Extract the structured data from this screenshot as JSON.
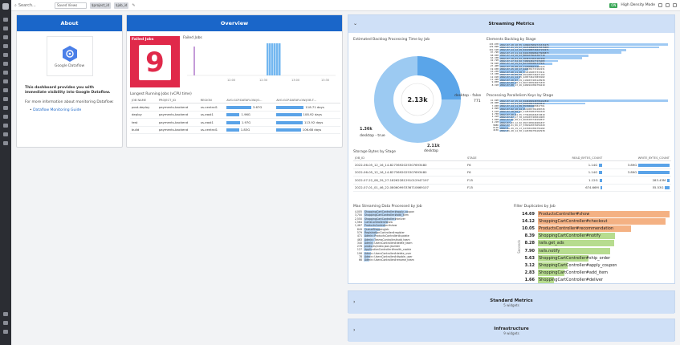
{
  "topbar": {
    "search_label": "Search...",
    "saved_views": "Saved Views",
    "template_var_1": "$project_id",
    "template_var_2": "$job_id",
    "high_density_label": "High Density Mode",
    "toggle_label": "ON"
  },
  "about": {
    "title": "About",
    "logo_text": "Google Dataflow",
    "intro": "This dashboard provides you with immediate visibility into Google Dataflow.",
    "more_info": "For more information about monitoring Dataflow:",
    "link": "Dataflow Monitoring Guide"
  },
  "overview": {
    "title": "Overview",
    "failed_jobs_label": "Failed Jobs",
    "failed_jobs_value": "9",
    "failed_jobs_chart_title": "Failed Jobs",
    "x_ticks": [
      "12:00",
      "12:30",
      "13:00",
      "13:30"
    ],
    "longest_title": "Longest Running Jobs (vCPU time)",
    "columns": [
      "JOB NAME",
      "PROJECT_ID",
      "REGION",
      "AVG:GCP.DATAFLOW.JO...",
      "AVG:GCP.DATAFLOW.JOB.T..."
    ],
    "rows": [
      {
        "job": "post-deploy",
        "project": "payments-backend",
        "region": "us-central1",
        "v1": "3.67G",
        "v2": "118.71 days",
        "b1": 0.85,
        "b2": 0.95
      },
      {
        "job": "deploy",
        "project": "payments-backend",
        "region": "us-east1",
        "v1": "1.96G",
        "v2": "108.92 days",
        "b1": 0.45,
        "b2": 0.87
      },
      {
        "job": "test",
        "project": "payments-backend",
        "region": "us-east1",
        "v1": "1.97G",
        "v2": "113.92 days",
        "b1": 0.46,
        "b2": 0.91
      },
      {
        "job": "build",
        "project": "payments-backend",
        "region": "us-central1",
        "v1": "1.83G",
        "v2": "106.68 days",
        "b1": 0.43,
        "b2": 0.85
      }
    ]
  },
  "streaming": {
    "title": "Streaming Metrics",
    "backlog_time_title": "Estimated Backlog Processing Time by Job",
    "donut_center": "2.13k",
    "donut_labels": {
      "a": "desktop - false",
      "a_val": "771",
      "b": "1.36k",
      "b_sub": "desktop - true",
      "c": "2.11k",
      "c_sub": "desktop"
    },
    "elements_backlog_title": "Elements Backlog by Stage",
    "elements_backlog": [
      {
        "v": "135.07M",
        "k": "2022-07-18_10_55_1284676092715315275",
        "f": 0.98
      },
      {
        "v": "129.89M",
        "k": "2022-07-21_15_27_1647498493578376003",
        "f": 0.93
      },
      {
        "v": "101.51M",
        "k": "2022-07-14_12_29_0412988718447159271",
        "f": 0.74
      },
      {
        "v": "97.79M",
        "k": "2022-07-13_11_44_0416368908473908873",
        "f": 0.71
      },
      {
        "v": "68.95M",
        "k": "2022-07-14_16_23_8891076624387718",
        "f": 0.52
      },
      {
        "v": "63.33M",
        "k": "2022-07-18_03_52_3838713021187458",
        "f": 0.48
      },
      {
        "v": "42.72M",
        "k": "2022-07-17_04_02_7482948177271683",
        "f": 0.34
      },
      {
        "v": "39.04M",
        "k": "2022-07-12_15_01_8271009481337921",
        "f": 0.31
      },
      {
        "v": "27.46M",
        "k": "2022-07-19_08_22_1123098472283123",
        "f": 0.23
      },
      {
        "v": "19.03M",
        "k": "2022-07-15_10_17_4429381772102231",
        "f": 0.17
      },
      {
        "v": "16.23M",
        "k": "2022-07-20_11_48_7729102837372211",
        "f": 0.15
      },
      {
        "v": "13.33M",
        "k": "2022-07-16_09_33_9912883746271102",
        "f": 0.13
      },
      {
        "v": "12.01M",
        "k": "2022-07-11_14_05_2283746172839102",
        "f": 0.12
      },
      {
        "v": "11.42M",
        "k": "2022-07-10_07_59_1192837465120938",
        "f": 0.11
      },
      {
        "v": "9.85M",
        "k": "2022-07-09_18_41_6617283940271839",
        "f": 0.1
      },
      {
        "v": "8.31M",
        "k": "2022-07-08_13_26_4482910384756210",
        "f": 0.09
      }
    ],
    "parallelism_title": "Processing Parallelism Keys by Stage",
    "parallelism": [
      {
        "v": "41.02M",
        "k": "2022-07-12_15_22_0440484948796162832",
        "f": 0.98
      },
      {
        "v": "20.96M",
        "k": "2022-07-13_21_43_2910284716293812",
        "f": 0.5
      },
      {
        "v": "7.05M",
        "k": "2022-07-14_11_09_5572819203847761",
        "f": 0.2
      },
      {
        "v": "4.89M",
        "k": "2022-07-02_10_44_4519887361298745",
        "f": 0.15
      },
      {
        "v": "3.61M",
        "k": "2022-07-18_09_16_1128392847561029",
        "f": 0.12
      },
      {
        "v": "2.75M",
        "k": "2022-07-20_04_55_7739201846372810",
        "f": 0.1
      },
      {
        "v": "2.41M",
        "k": "2022-07-07_17_38_2291837465019283",
        "f": 0.09
      },
      {
        "v": "1.82M",
        "k": "2022-07-05_08_21_6618293740192837",
        "f": 0.08
      },
      {
        "v": "1.21M",
        "k": "2022-07-03_12_02_9917283649201837",
        "f": 0.07
      },
      {
        "v": "988K",
        "k": "2022-07-01_06_47_3381920374651029",
        "f": 0.06
      },
      {
        "v": "611K",
        "k": "2022-06-29_19_13_4472819304756182",
        "f": 0.05
      },
      {
        "v": "415K",
        "k": "2022-06-28_14_58_1129384756102938",
        "f": 0.05
      }
    ],
    "storage_title": "Storage Bytes by Stage",
    "storage_columns": [
      "JOB_ID",
      "STAGE",
      "READ_BYTES_COUNT",
      "WRITE_BYTES_COUNT"
    ],
    "storage_rows": [
      {
        "job": "2022-06-05_12_16_14-8273692025307693480",
        "stage": "F6",
        "read": "1.14G",
        "write": "3.89G",
        "r": 0.1,
        "w": 0.97
      },
      {
        "job": "2022-06-05_12_16_14-8273692025307693480",
        "stage": "F6",
        "read": "1.14G",
        "write": "3.89G",
        "r": 0.1,
        "w": 0.97
      },
      {
        "job": "2022-07-22_08_29_27-18262281291012947197",
        "stage": "F15",
        "read": "1.12G",
        "write": "283.43M",
        "r": 0.09,
        "w": 0.07
      },
      {
        "job": "2022-07-01_01_46_22-08060993336710669107",
        "stage": "F15",
        "read": "674.66M",
        "write": "55.53G",
        "r": 0.06,
        "w": 0.14
      }
    ],
    "max_data_title": "Max Streaming Data Processed by Job",
    "max_data": [
      {
        "v": "4,005",
        "n": "ShoppingCartController#apply_coupon",
        "f": 0.55
      },
      {
        "v": "3,700",
        "n": "ShoppingCartController#add_item",
        "f": 0.5
      },
      {
        "v": "2,550",
        "n": "ShoppingCartController#deliver",
        "f": 0.4
      },
      {
        "v": "1,564",
        "n": "CartsController#show",
        "f": 0.3
      },
      {
        "v": "1,467",
        "n": "ProductsController#show",
        "f": 0.27
      },
      {
        "v": "849",
        "n": "QueueShoppingJob",
        "f": 0.2
      },
      {
        "v": "579",
        "n": "RegistrationController#register",
        "f": 0.17
      },
      {
        "v": "471",
        "n": "Admin::ProductsController#update",
        "f": 0.15
      },
      {
        "v": "463",
        "n": "Admin::TeamsController#add_team",
        "f": 0.14
      },
      {
        "v": "340",
        "n": "Admin::UsersController#delete_team",
        "f": 0.12
      },
      {
        "v": "276",
        "n": "products/index.json.jbuilder",
        "f": 0.11
      },
      {
        "v": "127",
        "n": "ApplicationController#health_cookie",
        "f": 0.1
      },
      {
        "v": "106",
        "n": "Admin::UsersController#delete_user",
        "f": 0.09
      },
      {
        "v": "78",
        "n": "Admin::UsersController#disable_user",
        "f": 0.08
      },
      {
        "v": "66",
        "n": "Admin::UsersController#rename_team",
        "f": 0.07
      }
    ],
    "filter_dup_title": "Filter Duplicates by Job",
    "filter_dup_axis": "Seconds",
    "filter_dup": [
      {
        "v": "14.69",
        "n": "ProductsController#show",
        "f": 0.99,
        "c": "#f4b183"
      },
      {
        "v": "14.12",
        "n": "ShoppingCartController#checkout",
        "f": 0.96,
        "c": "#f4b183"
      },
      {
        "v": "10.05",
        "n": "ProductsController#recommendation",
        "f": 0.7,
        "c": "#f4b183"
      },
      {
        "v": "8.39",
        "n": "ShoppingCartController#notify",
        "f": 0.58,
        "c": "#b7dc8f"
      },
      {
        "v": "8.28",
        "n": "rails.get_ads",
        "f": 0.57,
        "c": "#b7dc8f"
      },
      {
        "v": "7.90",
        "n": "rails.notify",
        "f": 0.54,
        "c": "#b7dc8f"
      },
      {
        "v": "5.63",
        "n": "ShoppingCartController#ship_order",
        "f": 0.38,
        "c": "#b7dc8f"
      },
      {
        "v": "3.12",
        "n": "ShoppingCartController#apply_coupon",
        "f": 0.22,
        "c": "#b7dc8f"
      },
      {
        "v": "2.83",
        "n": "ShoppingCartController#add_item",
        "f": 0.2,
        "c": "#b7dc8f"
      },
      {
        "v": "1.66",
        "n": "ShoppingCartController#deliver",
        "f": 0.12,
        "c": "#b7dc8f"
      }
    ]
  },
  "standard": {
    "title": "Standard Metrics",
    "sub": "5 widgets"
  },
  "infra": {
    "title": "Infrastructure",
    "sub": "9 widgets"
  }
}
